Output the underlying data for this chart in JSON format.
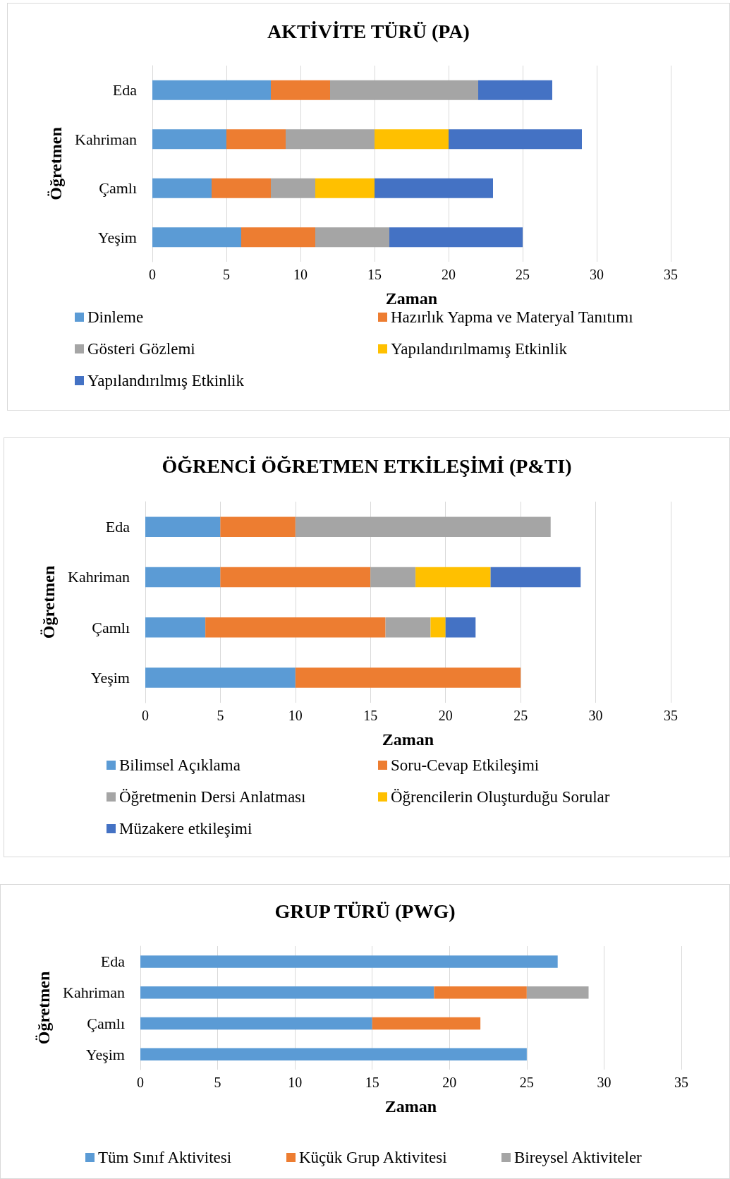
{
  "chart_data": [
    {
      "type": "bar",
      "orientation": "horizontal",
      "stacked": true,
      "title": "AKTİVİTE TÜRÜ (PA)",
      "xlabel": "Zaman",
      "ylabel": "Öğretmen",
      "categories": [
        "Eda",
        "Kahriman",
        "Çamlı",
        "Yeşim"
      ],
      "xlim": [
        0,
        35
      ],
      "xticks": [
        0,
        5,
        10,
        15,
        20,
        25,
        30,
        35
      ],
      "grid": "x",
      "legend": "bottom",
      "series": [
        {
          "name": "Dinleme",
          "color": "#5b9bd5",
          "values": [
            8,
            5,
            4,
            6
          ]
        },
        {
          "name": "Hazırlık Yapma ve Materyal Tanıtımı",
          "color": "#ed7d31",
          "values": [
            4,
            4,
            4,
            5
          ]
        },
        {
          "name": "Gösteri Gözlemi",
          "color": "#a5a5a5",
          "values": [
            10,
            6,
            3,
            5
          ]
        },
        {
          "name": "Yapılandırılmamış Etkinlik",
          "color": "#ffc000",
          "values": [
            null,
            5,
            4,
            null
          ]
        },
        {
          "name": "Yapılandırılmış Etkinlik",
          "color": "#4472c4",
          "values": [
            5,
            9,
            8,
            9
          ]
        }
      ]
    },
    {
      "type": "bar",
      "orientation": "horizontal",
      "stacked": true,
      "title": "ÖĞRENCİ ÖĞRETMEN ETKİLEŞİMİ (P&TI)",
      "xlabel": "Zaman",
      "ylabel": "Öğretmen",
      "categories": [
        "Eda",
        "Kahriman",
        "Çamlı",
        "Yeşim"
      ],
      "xlim": [
        0,
        35
      ],
      "xticks": [
        0,
        5,
        10,
        15,
        20,
        25,
        30,
        35
      ],
      "grid": "x",
      "legend": "bottom",
      "series": [
        {
          "name": "Bilimsel Açıklama",
          "color": "#5b9bd5",
          "values": [
            5,
            5,
            4,
            10
          ]
        },
        {
          "name": "Soru-Cevap Etkileşimi",
          "color": "#ed7d31",
          "values": [
            5,
            10,
            12,
            15
          ]
        },
        {
          "name": "Öğretmenin Dersi Anlatması",
          "color": "#a5a5a5",
          "values": [
            17,
            3,
            3,
            null
          ]
        },
        {
          "name": "Öğrencilerin Oluşturduğu Sorular",
          "color": "#ffc000",
          "values": [
            null,
            5,
            1,
            null
          ]
        },
        {
          "name": "Müzakere etkileşimi",
          "color": "#4472c4",
          "values": [
            null,
            6,
            2,
            null
          ]
        }
      ]
    },
    {
      "type": "bar",
      "orientation": "horizontal",
      "stacked": true,
      "title": "GRUP TÜRÜ (PWG)",
      "xlabel": "Zaman",
      "ylabel": "Öğretmen",
      "categories": [
        "Eda",
        "Kahriman",
        "Çamlı",
        "Yeşim"
      ],
      "xlim": [
        0,
        35
      ],
      "xticks": [
        0,
        5,
        10,
        15,
        20,
        25,
        30,
        35
      ],
      "grid": "x",
      "legend": "bottom",
      "series": [
        {
          "name": "Tüm Sınıf Aktivitesi",
          "color": "#5b9bd5",
          "values": [
            27,
            19,
            15,
            25
          ]
        },
        {
          "name": "Küçük Grup Aktivitesi",
          "color": "#ed7d31",
          "values": [
            null,
            6,
            7,
            null
          ]
        },
        {
          "name": "Bireysel Aktiviteler",
          "color": "#a5a5a5",
          "values": [
            null,
            4,
            null,
            null
          ]
        }
      ]
    }
  ]
}
